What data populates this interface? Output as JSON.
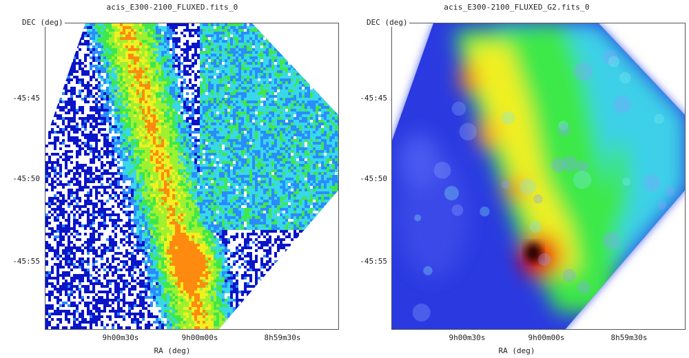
{
  "panels": [
    {
      "title": "acis_E300-2100_FLUXED.fits_0",
      "ylabel": "DEC (deg)",
      "xlabel": "RA (deg)",
      "yticks": [
        "-45:45",
        "-45:50",
        "-45:55"
      ],
      "xticks": [
        "9h00m30s",
        "9h00m00s",
        "8h59m30s"
      ],
      "style": "pixelated"
    },
    {
      "title": "acis_E300-2100_FLUXED_G2.fits_0",
      "ylabel": "DEC (deg)",
      "xlabel": "RA (deg)",
      "yticks": [
        "-45:45",
        "-45:50",
        "-45:55"
      ],
      "xticks": [
        "9h00m30s",
        "9h00m00s",
        "8h59m30s"
      ],
      "style": "smoothed"
    }
  ],
  "colors": {
    "low": "#0a14c8",
    "mid_low": "#2a8cff",
    "cyan": "#38d8e8",
    "green": "#3ee84a",
    "yellow": "#f0f020",
    "orange": "#ff8a10",
    "red": "#e81010",
    "peak": "#200000"
  }
}
